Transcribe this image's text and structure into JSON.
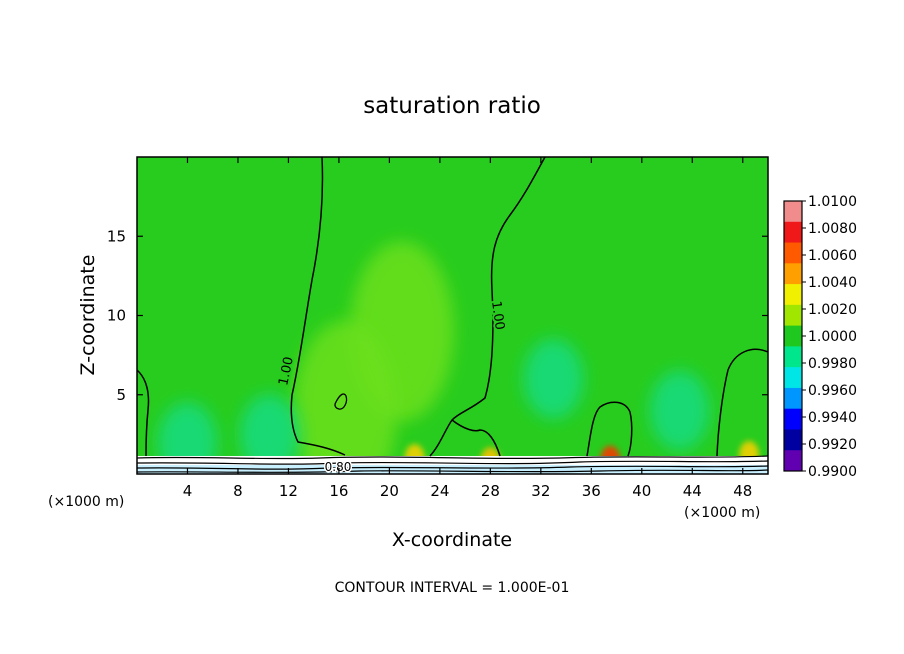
{
  "chart_data": {
    "type": "heatmap",
    "title": "saturation ratio",
    "xlabel": "X-coordinate",
    "ylabel": "Z-coordinate",
    "x_unit_left": "(×1000 m)",
    "x_unit_right": "(×1000 m)",
    "footer": "CONTOUR INTERVAL = 1.000E-01",
    "xlim": [
      0,
      50
    ],
    "ylim": [
      0,
      20
    ],
    "x_ticks": [
      4,
      8,
      12,
      16,
      20,
      24,
      28,
      32,
      36,
      40,
      44,
      48
    ],
    "y_ticks": [
      5,
      10,
      15
    ],
    "x_tick_labels": [
      "4",
      "8",
      "12",
      "16",
      "20",
      "24",
      "28",
      "32",
      "36",
      "40",
      "44",
      "48"
    ],
    "y_tick_labels": [
      "5",
      "10",
      "15"
    ],
    "contour_labels": [
      "1.00",
      "1.00",
      "0.80"
    ],
    "colorbar": {
      "labels": [
        "1.0100",
        "1.0080",
        "1.0060",
        "1.0040",
        "1.0020",
        "1.0000",
        "0.9980",
        "0.9960",
        "0.9940",
        "0.9920",
        "0.9900"
      ],
      "colors": [
        "#f08c8c",
        "#f01818",
        "#ff5a00",
        "#ffa000",
        "#f0f000",
        "#a0e600",
        "#1ec81e",
        "#00e68c",
        "#00e6e6",
        "#0096ff",
        "#0000ff",
        "#0000a0",
        "#6000b0"
      ]
    },
    "background_color": "#28cc1e",
    "features": [
      {
        "x": 21,
        "z": 9,
        "kind": "moist-plume",
        "color": "#6ce01a"
      },
      {
        "x": 16.5,
        "z": 4,
        "kind": "moist-plume",
        "color": "#6ce01a"
      },
      {
        "x": 28,
        "z": 0.8,
        "kind": "peak",
        "color": "#ffc000"
      },
      {
        "x": 37.5,
        "z": 0.9,
        "kind": "peak",
        "color": "#ff3000"
      },
      {
        "x": 48.5,
        "z": 1.2,
        "kind": "peak",
        "color": "#ffd000"
      },
      {
        "x": 22,
        "z": 1.0,
        "kind": "peak",
        "color": "#ffd000"
      },
      {
        "x": 4,
        "z": 2,
        "kind": "dry-zone",
        "color": "#14dc82"
      },
      {
        "x": 10.5,
        "z": 2.5,
        "kind": "dry-zone",
        "color": "#14dc82"
      },
      {
        "x": 33,
        "z": 6,
        "kind": "dry-zone",
        "color": "#14dc82"
      },
      {
        "x": 43,
        "z": 4,
        "kind": "dry-zone",
        "color": "#14dc82"
      }
    ]
  }
}
